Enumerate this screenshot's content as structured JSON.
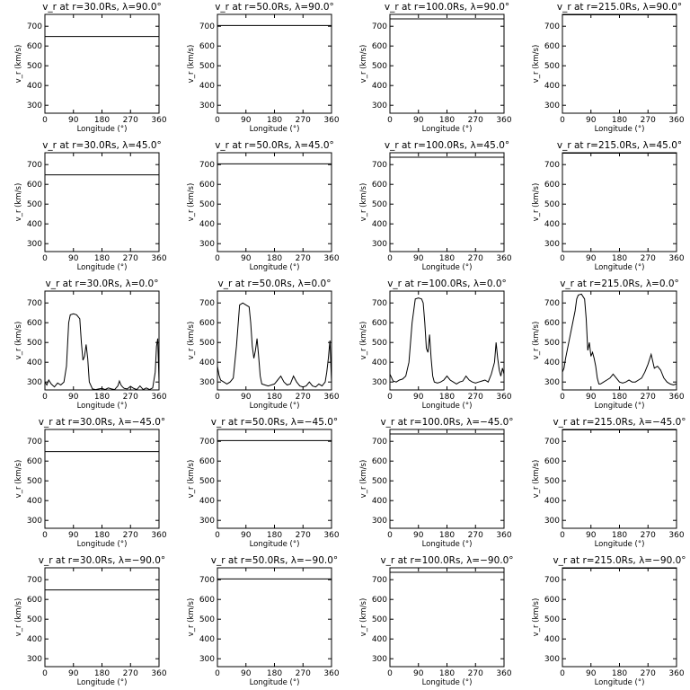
{
  "chart_data": {
    "type": "line",
    "layout": {
      "rows": 5,
      "cols": 4
    },
    "xlabel": "Longitude (°)",
    "ylabel": "v_r (km/s)",
    "xlim": [
      0,
      360
    ],
    "ylim": [
      260,
      760
    ],
    "xticks": [
      "0",
      "90",
      "180",
      "270",
      "360"
    ],
    "yticks": [
      "300",
      "400",
      "500",
      "600",
      "700"
    ],
    "panels": [
      {
        "title": "v_r at r=30.0Rs, λ=90.0°",
        "x": [
          0,
          360
        ],
        "y": [
          648,
          648
        ]
      },
      {
        "title": "v_r at r=50.0Rs, λ=90.0°",
        "x": [
          0,
          360
        ],
        "y": [
          704,
          704
        ]
      },
      {
        "title": "v_r at r=100.0Rs, λ=90.0°",
        "x": [
          0,
          360
        ],
        "y": [
          737,
          737
        ]
      },
      {
        "title": "v_r at r=215.0Rs, λ=90.0°",
        "x": [
          0,
          360
        ],
        "y": [
          758,
          758
        ]
      },
      {
        "title": "v_r at r=30.0Rs, λ=45.0°",
        "x": [
          0,
          360
        ],
        "y": [
          648,
          648
        ]
      },
      {
        "title": "v_r at r=50.0Rs, λ=45.0°",
        "x": [
          0,
          360
        ],
        "y": [
          704,
          704
        ]
      },
      {
        "title": "v_r at r=100.0Rs, λ=45.0°",
        "x": [
          0,
          360
        ],
        "y": [
          737,
          737
        ]
      },
      {
        "title": "v_r at r=215.0Rs, λ=45.0°",
        "x": [
          0,
          360
        ],
        "y": [
          758,
          758
        ]
      },
      {
        "title": "v_r at r=30.0Rs, λ=0.0°",
        "x": [
          0,
          6,
          12,
          20,
          30,
          40,
          50,
          60,
          68,
          75,
          80,
          90,
          100,
          110,
          115,
          120,
          125,
          130,
          135,
          140,
          150,
          160,
          170,
          180,
          190,
          200,
          210,
          220,
          230,
          235,
          240,
          245,
          250,
          260,
          270,
          280,
          290,
          300,
          310,
          320,
          330,
          340,
          348,
          352,
          356,
          360
        ],
        "y": [
          300,
          285,
          310,
          290,
          275,
          295,
          285,
          300,
          380,
          600,
          640,
          645,
          640,
          620,
          500,
          410,
          430,
          490,
          420,
          300,
          265,
          262,
          265,
          268,
          262,
          270,
          265,
          262,
          280,
          305,
          285,
          275,
          268,
          265,
          278,
          268,
          262,
          280,
          262,
          270,
          262,
          270,
          350,
          480,
          520,
          300
        ]
      },
      {
        "title": "v_r at r=50.0Rs, λ=0.0°",
        "x": [
          0,
          5,
          10,
          20,
          30,
          40,
          50,
          60,
          70,
          80,
          90,
          100,
          105,
          110,
          115,
          120,
          125,
          130,
          135,
          140,
          150,
          160,
          170,
          180,
          190,
          200,
          210,
          220,
          230,
          240,
          250,
          260,
          270,
          280,
          290,
          300,
          310,
          320,
          330,
          340,
          345,
          350,
          355,
          360
        ],
        "y": [
          380,
          335,
          310,
          300,
          290,
          300,
          320,
          480,
          690,
          700,
          690,
          680,
          600,
          480,
          420,
          460,
          520,
          430,
          330,
          290,
          285,
          280,
          285,
          290,
          310,
          330,
          300,
          285,
          290,
          330,
          300,
          280,
          275,
          280,
          300,
          280,
          275,
          290,
          280,
          300,
          350,
          420,
          510,
          300
        ]
      },
      {
        "title": "v_r at r=100.0Rs, λ=0.0°",
        "x": [
          0,
          10,
          20,
          30,
          40,
          50,
          60,
          70,
          80,
          90,
          100,
          105,
          110,
          115,
          120,
          125,
          130,
          135,
          140,
          150,
          160,
          170,
          180,
          190,
          200,
          210,
          220,
          230,
          240,
          250,
          260,
          270,
          280,
          290,
          300,
          310,
          320,
          330,
          335,
          340,
          345,
          350,
          355,
          360
        ],
        "y": [
          340,
          305,
          300,
          310,
          315,
          330,
          400,
          600,
          720,
          725,
          720,
          700,
          600,
          470,
          450,
          540,
          420,
          330,
          300,
          295,
          300,
          310,
          330,
          310,
          300,
          290,
          300,
          305,
          330,
          310,
          300,
          295,
          300,
          305,
          310,
          300,
          340,
          400,
          500,
          420,
          360,
          330,
          370,
          340
        ]
      },
      {
        "title": "v_r at r=215.0Rs, λ=0.0°",
        "x": [
          0,
          5,
          10,
          20,
          30,
          40,
          45,
          50,
          60,
          70,
          75,
          80,
          85,
          90,
          95,
          100,
          105,
          110,
          115,
          120,
          130,
          140,
          150,
          160,
          170,
          180,
          190,
          200,
          210,
          220,
          230,
          240,
          250,
          260,
          270,
          280,
          290,
          300,
          310,
          320,
          330,
          340,
          350,
          360
        ],
        "y": [
          350,
          370,
          420,
          500,
          580,
          660,
          720,
          740,
          745,
          720,
          620,
          460,
          500,
          430,
          450,
          420,
          380,
          320,
          290,
          290,
          300,
          310,
          320,
          340,
          320,
          300,
          295,
          300,
          310,
          300,
          300,
          310,
          320,
          350,
          390,
          440,
          370,
          380,
          360,
          320,
          300,
          290,
          285,
          290
        ]
      },
      {
        "title": "v_r at r=30.0Rs, λ=−45.0°",
        "x": [
          0,
          360
        ],
        "y": [
          648,
          648
        ]
      },
      {
        "title": "v_r at r=50.0Rs, λ=−45.0°",
        "x": [
          0,
          360
        ],
        "y": [
          704,
          704
        ]
      },
      {
        "title": "v_r at r=100.0Rs, λ=−45.0°",
        "x": [
          0,
          360
        ],
        "y": [
          737,
          737
        ]
      },
      {
        "title": "v_r at r=215.0Rs, λ=−45.0°",
        "x": [
          0,
          360
        ],
        "y": [
          758,
          758
        ]
      },
      {
        "title": "v_r at r=30.0Rs, λ=−90.0°",
        "x": [
          0,
          360
        ],
        "y": [
          648,
          648
        ]
      },
      {
        "title": "v_r at r=50.0Rs, λ=−90.0°",
        "x": [
          0,
          360
        ],
        "y": [
          704,
          704
        ]
      },
      {
        "title": "v_r at r=100.0Rs, λ=−90.0°",
        "x": [
          0,
          360
        ],
        "y": [
          737,
          737
        ]
      },
      {
        "title": "v_r at r=215.0Rs, λ=−90.0°",
        "x": [
          0,
          360
        ],
        "y": [
          758,
          758
        ]
      }
    ],
    "grid": false,
    "legend": "none",
    "line_color": "#000000"
  }
}
